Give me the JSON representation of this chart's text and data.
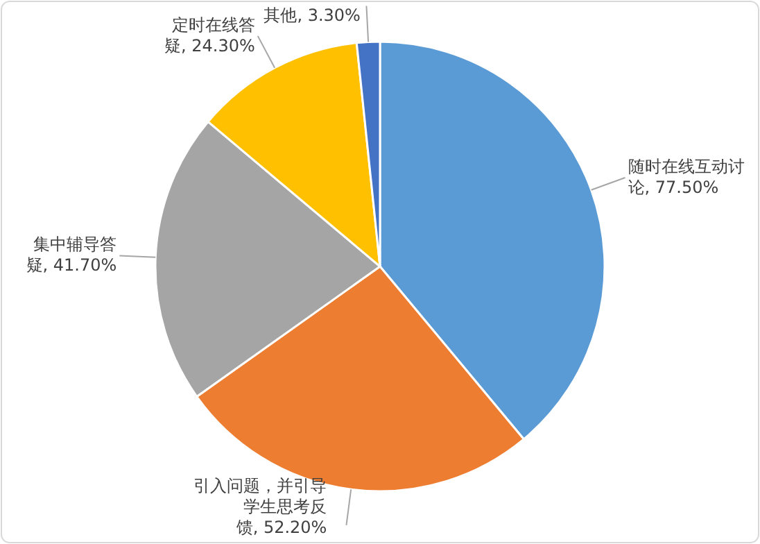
{
  "chart_data": {
    "type": "pie",
    "categories": [
      "随时在线互动讨论",
      "引入问题，并引导学生思考反馈",
      "集中辅导答疑",
      "定时在线答疑",
      "其他"
    ],
    "values": [
      77.5,
      52.2,
      41.7,
      24.3,
      3.3
    ],
    "value_labels": [
      ", 77.50%",
      ", 52.20%",
      ", 41.70%",
      ", 24.30%",
      ", 3.30%"
    ],
    "colors": [
      "#5b9bd5",
      "#ed7d31",
      "#a5a5a5",
      "#ffc000",
      "#4472c4"
    ]
  }
}
